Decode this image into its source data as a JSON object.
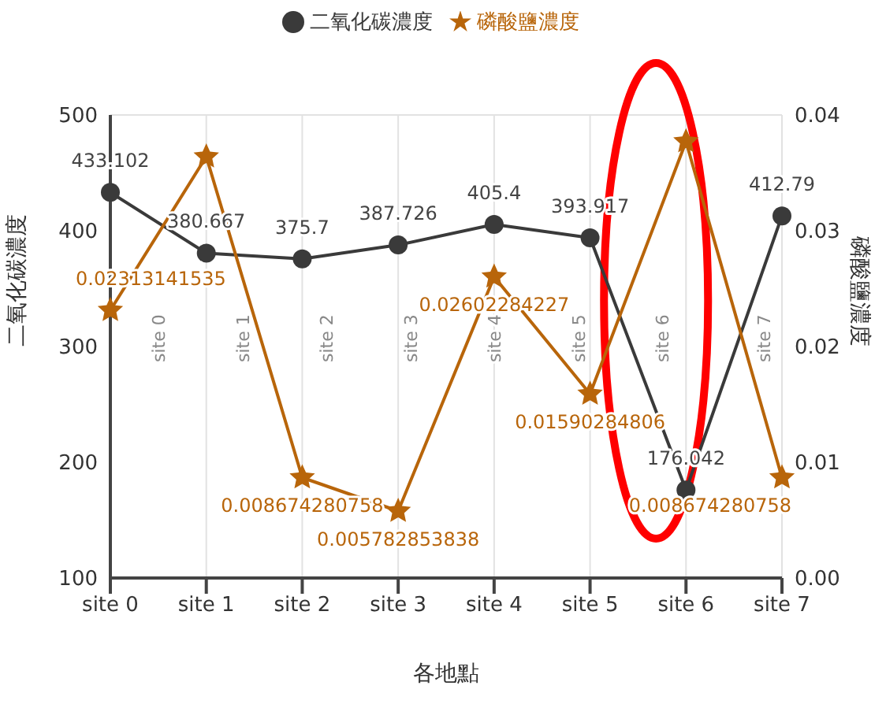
{
  "chart_data": {
    "type": "line",
    "xlabel": "各地點",
    "ylabel": "二氧化碳濃度",
    "y2label": "磷酸鹽濃度",
    "categories": [
      "site 0",
      "site 1",
      "site 2",
      "site 3",
      "site 4",
      "site 5",
      "site 6",
      "site 7"
    ],
    "series": [
      {
        "name": "二氧化碳濃度",
        "color": "#3a3a3a",
        "marker": "circle",
        "values": [
          433.102,
          380.667,
          375.7,
          387.726,
          405.4,
          393.917,
          176.042,
          412.79
        ],
        "value_labels": [
          "433.102",
          "380.667",
          "375.7",
          "387.726",
          "405.4",
          "393.917",
          "176.042",
          "412.79"
        ]
      },
      {
        "name": "磷酸鹽濃度",
        "color": "#b8650a",
        "marker": "star",
        "axis": "y2",
        "values": [
          0.02313141535,
          0.0364,
          0.008674280758,
          0.005782853838,
          0.02602284227,
          0.01590284806,
          0.0377,
          0.008674280758
        ],
        "value_labels": [
          "0.02313141535",
          null,
          "0.008674280758",
          "0.005782853838",
          "0.02602284227",
          "0.01590284806",
          null,
          "0.008674280758"
        ]
      }
    ],
    "ylim": [
      100,
      500
    ],
    "yticks": [
      100,
      200,
      300,
      400,
      500
    ],
    "y2lim": [
      0,
      0.04
    ],
    "y2ticks": [
      {
        "value": 0,
        "label": "0.00"
      },
      {
        "value": 0.01,
        "label": "0.01"
      },
      {
        "value": 0.02,
        "label": "0.02"
      },
      {
        "value": 0.03,
        "label": "0.03"
      },
      {
        "value": 0.04,
        "label": "0.04"
      }
    ],
    "grid": true,
    "legend": "top",
    "line_style": "solid"
  }
}
